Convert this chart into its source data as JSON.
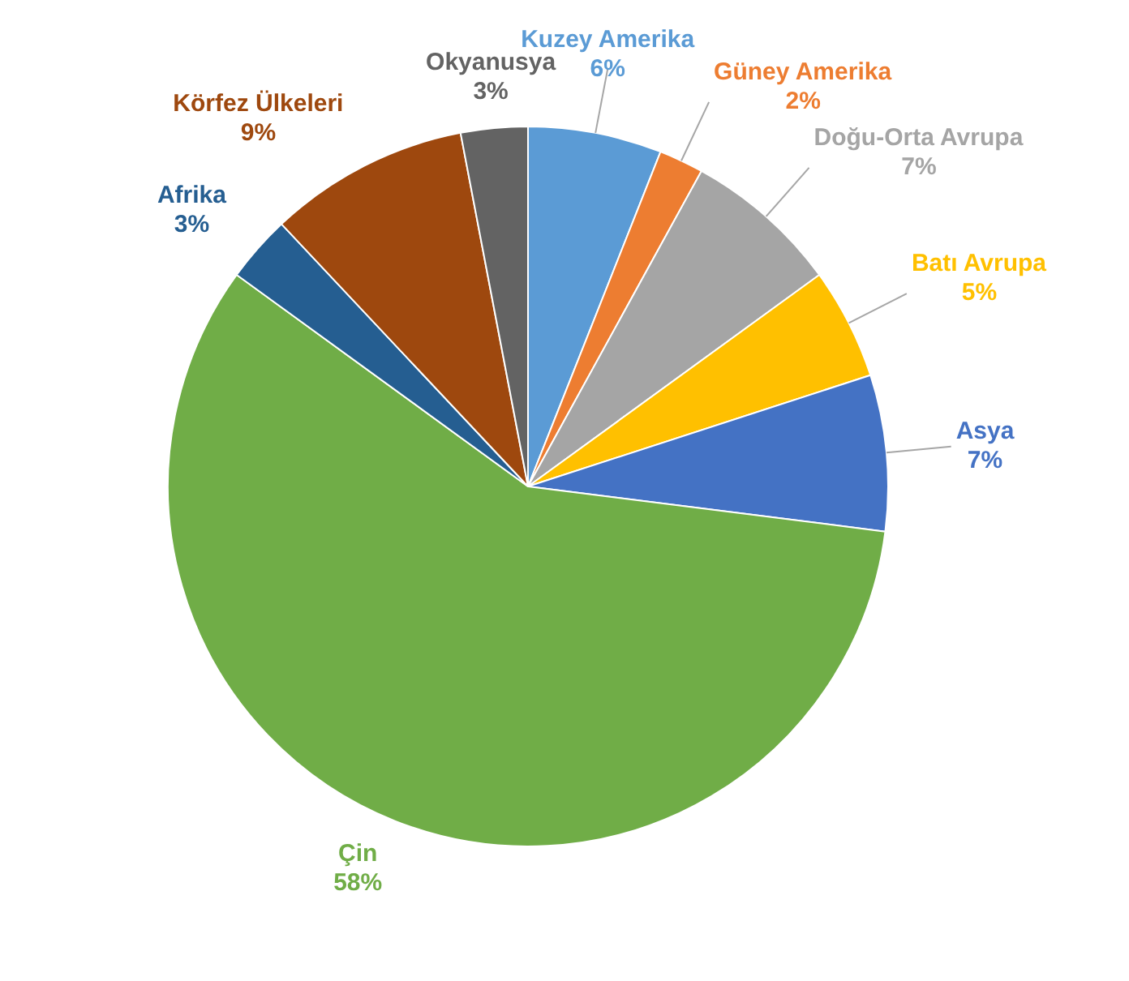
{
  "chart_data": {
    "type": "pie",
    "categories": [
      "Kuzey Amerika",
      "Güney Amerika",
      "Doğu-Orta Avrupa",
      "Batı Avrupa",
      "Asya",
      "Çin",
      "Afrika",
      "Körfez Ülkeleri",
      "Okyanusya"
    ],
    "values": [
      6,
      2,
      7,
      5,
      7,
      58,
      3,
      9,
      3
    ],
    "value_labels": [
      "6%",
      "2%",
      "7%",
      "5%",
      "7%",
      "58%",
      "3%",
      "9%",
      "3%"
    ],
    "colors": [
      "#5b9bd5",
      "#ed7d31",
      "#a5a5a5",
      "#ffc000",
      "#4472c4",
      "#70ad47",
      "#255e91",
      "#9e480e",
      "#636363"
    ],
    "legend": false
  }
}
